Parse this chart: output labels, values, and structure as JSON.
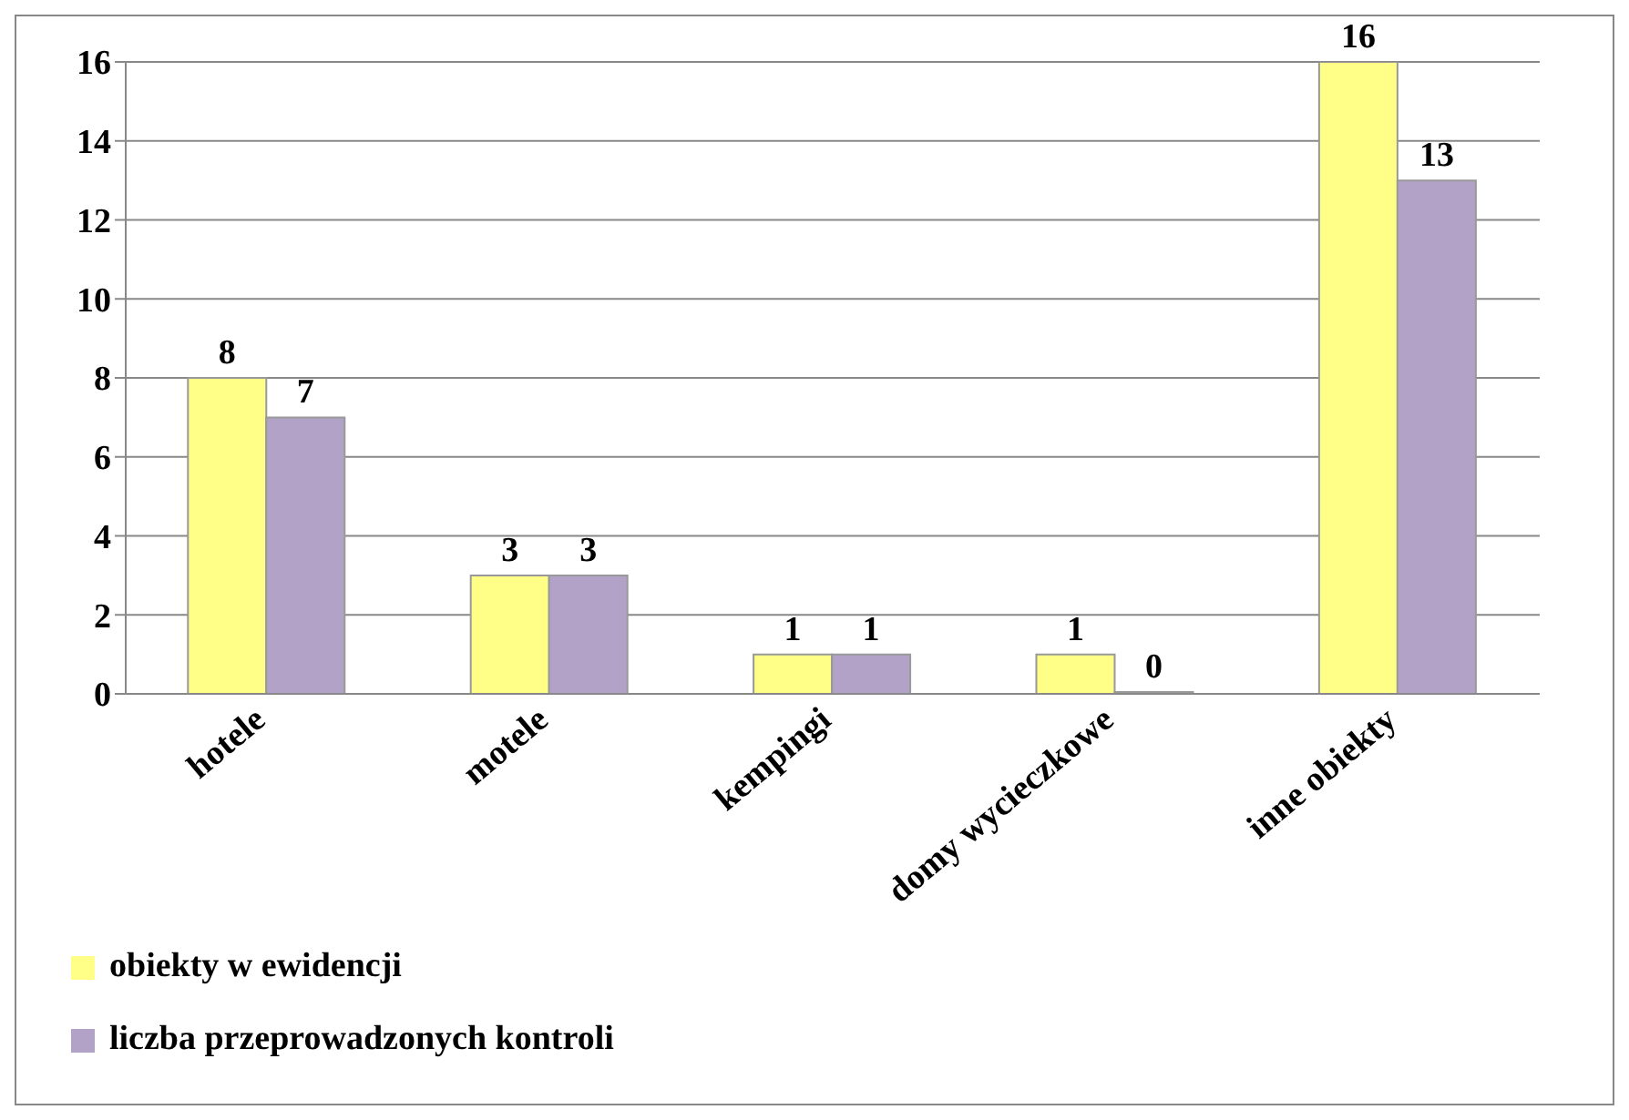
{
  "chart_data": {
    "type": "bar",
    "categories": [
      "hotele",
      "motele",
      "kempingi",
      "domy wycieczkowe",
      "inne obiekty"
    ],
    "series": [
      {
        "name": "obiekty w ewidencji",
        "color": "#ffff88",
        "values": [
          8,
          3,
          1,
          1,
          16
        ]
      },
      {
        "name": "liczba przeprowadzonych kontroli",
        "color": "#b3a2c7",
        "values": [
          7,
          3,
          1,
          0,
          13
        ]
      }
    ],
    "ylim": [
      0,
      16
    ],
    "yticks": [
      0,
      2,
      4,
      6,
      8,
      10,
      12,
      14,
      16
    ],
    "grid": "y",
    "legend": "bottom left",
    "data_labels": true
  }
}
